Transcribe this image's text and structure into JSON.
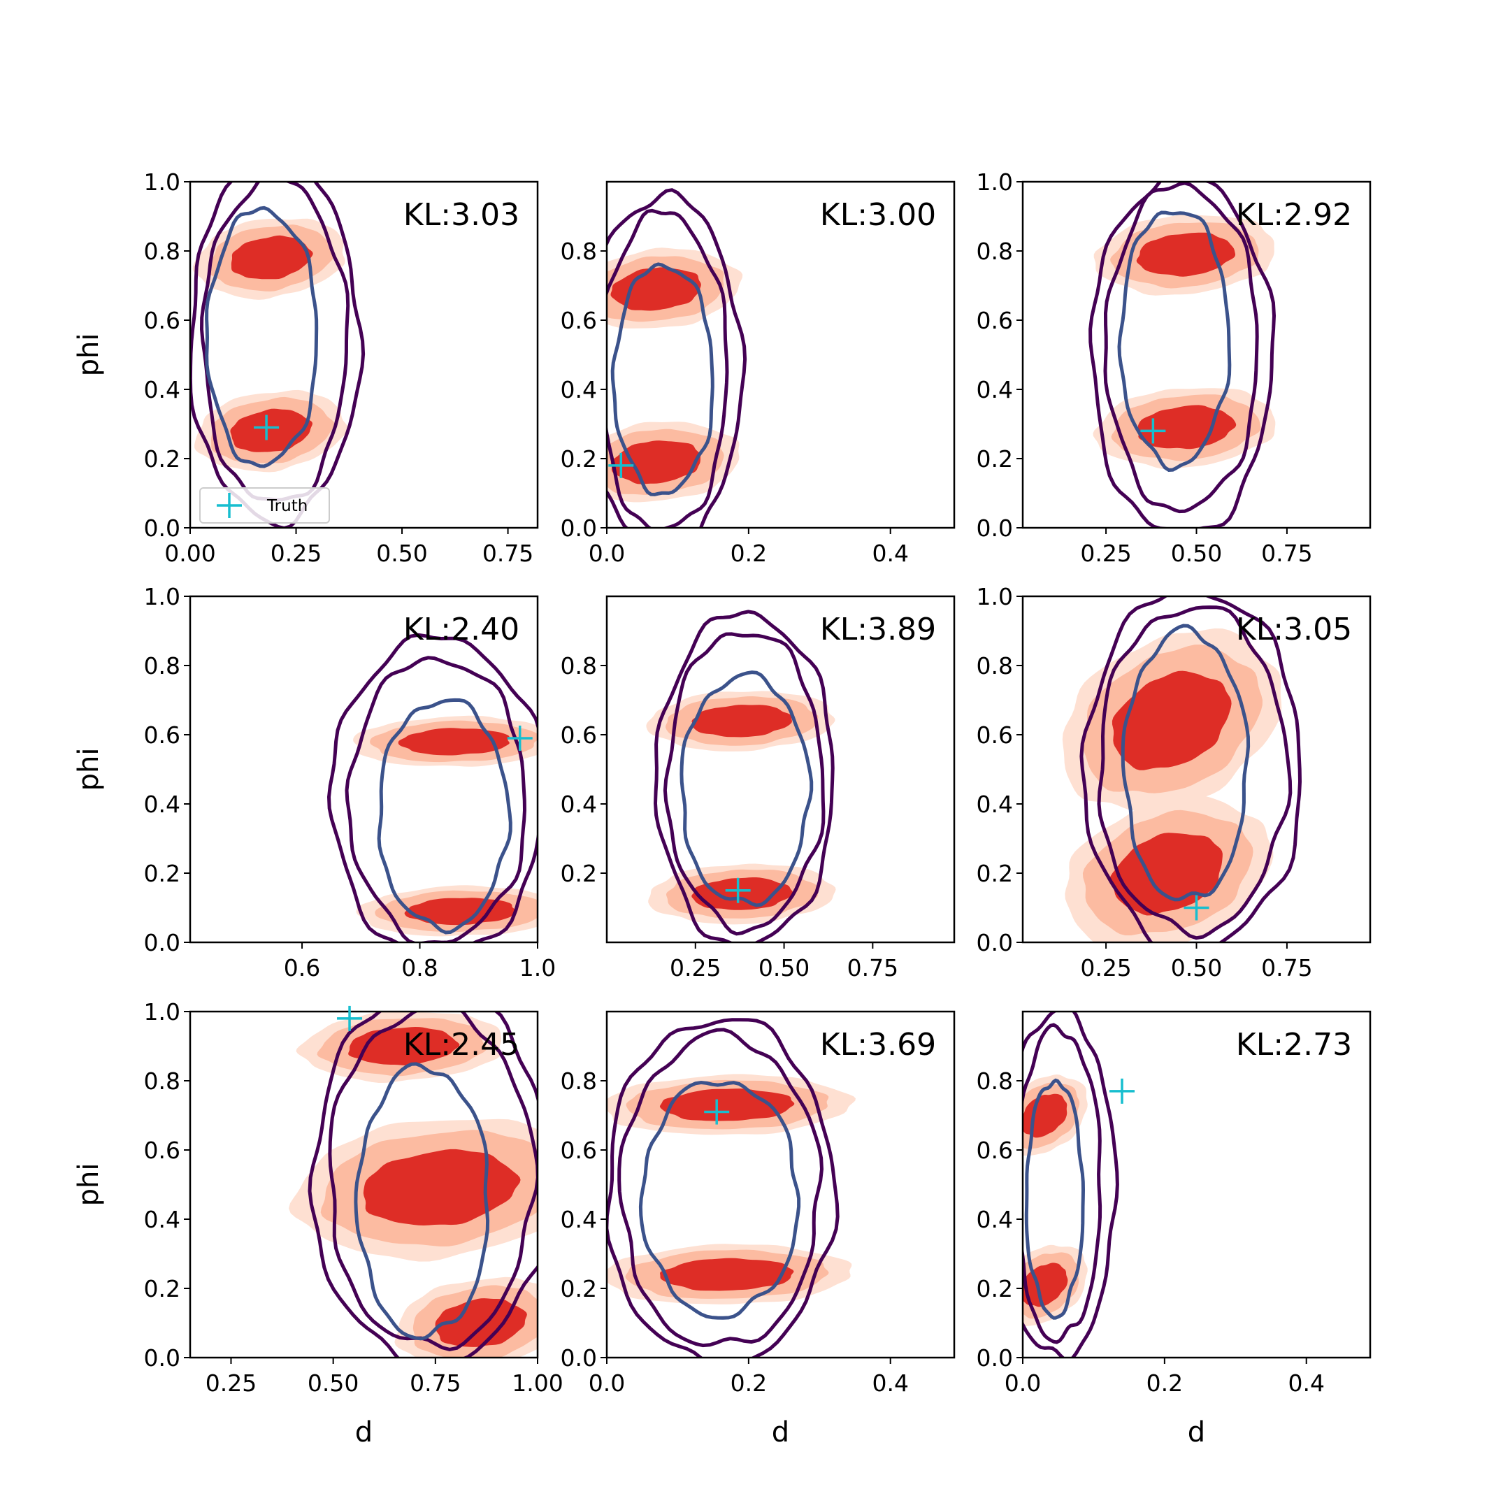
{
  "figure": {
    "truth_color": "#17becf",
    "fill_colors": [
      "#fee0d2",
      "#fcbba1",
      "#de2d26"
    ],
    "contour_colors": [
      "#440154",
      "#3b528b"
    ]
  },
  "chart_data": [
    {
      "type": "contour",
      "kl_text": "KL:3.03",
      "xlabel": "",
      "ylabel": "phi",
      "xlim": [
        0.0,
        0.82
      ],
      "ylim": [
        0.0,
        1.0
      ],
      "xticks": [
        0.0,
        0.25,
        0.5,
        0.75
      ],
      "xtick_labels": [
        "0.00",
        "0.25",
        "0.50",
        "0.75"
      ],
      "yticks": [
        0.0,
        0.2,
        0.4,
        0.6,
        0.8,
        1.0
      ],
      "ytick_labels": [
        "0.0",
        "0.2",
        "0.4",
        "0.6",
        "0.8",
        "1.0"
      ],
      "truth": [
        0.18,
        0.29
      ],
      "legend": {
        "label": "Truth",
        "location": "lower left"
      },
      "blobs": [
        {
          "cx": 0.19,
          "cy": 0.78,
          "rx": 0.12,
          "ry": 0.08
        },
        {
          "cx": 0.19,
          "cy": 0.28,
          "rx": 0.12,
          "ry": 0.08
        }
      ],
      "contours": [
        {
          "cx": 0.2,
          "cy": 0.54,
          "rx": 0.2,
          "ry": 0.52
        },
        {
          "cx": 0.2,
          "cy": 0.54,
          "rx": 0.17,
          "ry": 0.47
        },
        {
          "cx": 0.17,
          "cy": 0.55,
          "rx": 0.13,
          "ry": 0.37
        }
      ]
    },
    {
      "type": "contour",
      "kl_text": "KL:3.00",
      "xlabel": "",
      "ylabel": "",
      "xlim": [
        0.0,
        0.49
      ],
      "ylim": [
        0.0,
        1.0
      ],
      "xticks": [
        0.0,
        0.2,
        0.4
      ],
      "xtick_labels": [
        "0.0",
        "0.2",
        "0.4"
      ],
      "yticks": [
        0.0,
        0.2,
        0.4,
        0.6,
        0.8
      ],
      "ytick_labels": [
        "0.0",
        "0.2",
        "0.4",
        "0.6",
        "0.8"
      ],
      "truth": [
        0.02,
        0.18
      ],
      "blobs": [
        {
          "cx": 0.07,
          "cy": 0.69,
          "rx": 0.08,
          "ry": 0.08
        },
        {
          "cx": 0.07,
          "cy": 0.19,
          "rx": 0.08,
          "ry": 0.08
        }
      ],
      "contours": [
        {
          "cx": 0.08,
          "cy": 0.45,
          "rx": 0.11,
          "ry": 0.51
        },
        {
          "cx": 0.08,
          "cy": 0.45,
          "rx": 0.09,
          "ry": 0.46
        },
        {
          "cx": 0.08,
          "cy": 0.43,
          "rx": 0.07,
          "ry": 0.33
        }
      ]
    },
    {
      "type": "contour",
      "kl_text": "KL:2.92",
      "xlabel": "",
      "ylabel": "",
      "xlim": [
        0.02,
        0.98
      ],
      "ylim": [
        0.0,
        1.0
      ],
      "xticks": [
        0.25,
        0.5,
        0.75
      ],
      "xtick_labels": [
        "0.25",
        "0.50",
        "0.75"
      ],
      "yticks": [
        0.0,
        0.2,
        0.4,
        0.6,
        0.8,
        1.0
      ],
      "ytick_labels": [
        "0.0",
        "0.2",
        "0.4",
        "0.6",
        "0.8",
        "1.0"
      ],
      "truth": [
        0.38,
        0.28
      ],
      "blobs": [
        {
          "cx": 0.47,
          "cy": 0.79,
          "rx": 0.17,
          "ry": 0.08
        },
        {
          "cx": 0.47,
          "cy": 0.29,
          "rx": 0.17,
          "ry": 0.08
        }
      ],
      "contours": [
        {
          "cx": 0.46,
          "cy": 0.5,
          "rx": 0.25,
          "ry": 0.52
        },
        {
          "cx": 0.46,
          "cy": 0.52,
          "rx": 0.21,
          "ry": 0.47
        },
        {
          "cx": 0.44,
          "cy": 0.55,
          "rx": 0.15,
          "ry": 0.37
        }
      ]
    },
    {
      "type": "contour",
      "kl_text": "KL:2.40",
      "xlabel": "",
      "ylabel": "phi",
      "xlim": [
        0.41,
        1.0
      ],
      "ylim": [
        0.0,
        1.0
      ],
      "xticks": [
        0.6,
        0.8,
        1.0
      ],
      "xtick_labels": [
        "0.6",
        "0.8",
        "1.0"
      ],
      "yticks": [
        0.0,
        0.2,
        0.4,
        0.6,
        0.8,
        1.0
      ],
      "ytick_labels": [
        "0.0",
        "0.2",
        "0.4",
        "0.6",
        "0.8",
        "1.0"
      ],
      "truth": [
        0.97,
        0.59
      ],
      "blobs": [
        {
          "cx": 0.86,
          "cy": 0.58,
          "rx": 0.12,
          "ry": 0.05
        },
        {
          "cx": 0.87,
          "cy": 0.09,
          "rx": 0.12,
          "ry": 0.05
        }
      ],
      "contours": [
        {
          "cx": 0.83,
          "cy": 0.42,
          "rx": 0.18,
          "ry": 0.46
        },
        {
          "cx": 0.83,
          "cy": 0.41,
          "rx": 0.15,
          "ry": 0.41
        },
        {
          "cx": 0.84,
          "cy": 0.37,
          "rx": 0.11,
          "ry": 0.33
        }
      ]
    },
    {
      "type": "contour",
      "kl_text": "KL:3.89",
      "xlabel": "",
      "ylabel": "",
      "xlim": [
        0.0,
        0.98
      ],
      "ylim": [
        0.0,
        1.0
      ],
      "xticks": [
        0.25,
        0.5,
        0.75
      ],
      "xtick_labels": [
        "0.25",
        "0.50",
        "0.75"
      ],
      "yticks": [
        0.2,
        0.4,
        0.6,
        0.8
      ],
      "ytick_labels": [
        "0.2",
        "0.4",
        "0.6",
        "0.8"
      ],
      "truth": [
        0.37,
        0.15
      ],
      "blobs": [
        {
          "cx": 0.38,
          "cy": 0.64,
          "rx": 0.18,
          "ry": 0.06
        },
        {
          "cx": 0.38,
          "cy": 0.14,
          "rx": 0.18,
          "ry": 0.06
        }
      ],
      "contours": [
        {
          "cx": 0.39,
          "cy": 0.47,
          "rx": 0.25,
          "ry": 0.48
        },
        {
          "cx": 0.39,
          "cy": 0.47,
          "rx": 0.22,
          "ry": 0.43
        },
        {
          "cx": 0.39,
          "cy": 0.44,
          "rx": 0.18,
          "ry": 0.33
        }
      ]
    },
    {
      "type": "contour",
      "kl_text": "KL:3.05",
      "xlabel": "",
      "ylabel": "",
      "xlim": [
        0.02,
        0.98
      ],
      "ylim": [
        0.0,
        1.0
      ],
      "xticks": [
        0.25,
        0.5,
        0.75
      ],
      "xtick_labels": [
        "0.25",
        "0.50",
        "0.75"
      ],
      "yticks": [
        0.0,
        0.2,
        0.4,
        0.6,
        0.8,
        1.0
      ],
      "ytick_labels": [
        "0.0",
        "0.2",
        "0.4",
        "0.6",
        "0.8",
        "1.0"
      ],
      "truth": [
        0.5,
        0.1
      ],
      "blobs": [
        {
          "cx": 0.43,
          "cy": 0.64,
          "rx": 0.2,
          "ry": 0.18
        },
        {
          "cx": 0.42,
          "cy": 0.2,
          "rx": 0.19,
          "ry": 0.15
        }
      ],
      "contours": [
        {
          "cx": 0.49,
          "cy": 0.5,
          "rx": 0.3,
          "ry": 0.52
        },
        {
          "cx": 0.49,
          "cy": 0.5,
          "rx": 0.26,
          "ry": 0.47
        },
        {
          "cx": 0.47,
          "cy": 0.51,
          "rx": 0.17,
          "ry": 0.39
        }
      ]
    },
    {
      "type": "contour",
      "kl_text": "KL:2.45",
      "xlabel": "d",
      "ylabel": "phi",
      "xlim": [
        0.15,
        1.0
      ],
      "ylim": [
        0.0,
        1.0
      ],
      "xticks": [
        0.25,
        0.5,
        0.75,
        1.0
      ],
      "xtick_labels": [
        "0.25",
        "0.50",
        "0.75",
        "1.00"
      ],
      "yticks": [
        0.0,
        0.2,
        0.4,
        0.6,
        0.8,
        1.0
      ],
      "ytick_labels": [
        "0.0",
        "0.2",
        "0.4",
        "0.6",
        "0.8",
        "1.0"
      ],
      "truth": [
        0.54,
        0.98
      ],
      "blobs": [
        {
          "cx": 0.67,
          "cy": 0.9,
          "rx": 0.17,
          "ry": 0.07
        },
        {
          "cx": 0.76,
          "cy": 0.49,
          "rx": 0.24,
          "ry": 0.14
        },
        {
          "cx": 0.86,
          "cy": 0.1,
          "rx": 0.14,
          "ry": 0.09
        }
      ],
      "contours": [
        {
          "cx": 0.74,
          "cy": 0.52,
          "rx": 0.29,
          "ry": 0.54
        },
        {
          "cx": 0.74,
          "cy": 0.52,
          "rx": 0.25,
          "ry": 0.49
        },
        {
          "cx": 0.72,
          "cy": 0.45,
          "rx": 0.16,
          "ry": 0.39
        }
      ]
    },
    {
      "type": "contour",
      "kl_text": "KL:3.69",
      "xlabel": "d",
      "ylabel": "",
      "xlim": [
        0.0,
        0.49
      ],
      "ylim": [
        0.0,
        1.0
      ],
      "xticks": [
        0.0,
        0.2,
        0.4
      ],
      "xtick_labels": [
        "0.0",
        "0.2",
        "0.4"
      ],
      "yticks": [
        0.0,
        0.2,
        0.4,
        0.6,
        0.8
      ],
      "ytick_labels": [
        "0.0",
        "0.2",
        "0.4",
        "0.6",
        "0.8"
      ],
      "truth": [
        0.155,
        0.71
      ],
      "blobs": [
        {
          "cx": 0.17,
          "cy": 0.73,
          "rx": 0.12,
          "ry": 0.06
        },
        {
          "cx": 0.17,
          "cy": 0.24,
          "rx": 0.12,
          "ry": 0.06
        }
      ],
      "contours": [
        {
          "cx": 0.16,
          "cy": 0.48,
          "rx": 0.16,
          "ry": 0.5
        },
        {
          "cx": 0.16,
          "cy": 0.48,
          "rx": 0.14,
          "ry": 0.45
        },
        {
          "cx": 0.16,
          "cy": 0.46,
          "rx": 0.11,
          "ry": 0.34
        }
      ]
    },
    {
      "type": "contour",
      "kl_text": "KL:2.73",
      "xlabel": "d",
      "ylabel": "",
      "xlim": [
        0.0,
        0.49
      ],
      "ylim": [
        0.0,
        1.0
      ],
      "xticks": [
        0.0,
        0.2,
        0.4
      ],
      "xtick_labels": [
        "0.0",
        "0.2",
        "0.4"
      ],
      "yticks": [
        0.0,
        0.2,
        0.4,
        0.6,
        0.8
      ],
      "ytick_labels": [
        "0.0",
        "0.2",
        "0.4",
        "0.6",
        "0.8"
      ],
      "truth": [
        0.14,
        0.77
      ],
      "blobs": [
        {
          "cx": 0.03,
          "cy": 0.7,
          "rx": 0.04,
          "ry": 0.08
        },
        {
          "cx": 0.03,
          "cy": 0.21,
          "rx": 0.04,
          "ry": 0.08
        }
      ],
      "contours": [
        {
          "cx": 0.05,
          "cy": 0.5,
          "rx": 0.08,
          "ry": 0.5
        },
        {
          "cx": 0.05,
          "cy": 0.5,
          "rx": 0.06,
          "ry": 0.45
        },
        {
          "cx": 0.045,
          "cy": 0.46,
          "rx": 0.04,
          "ry": 0.34
        }
      ]
    }
  ]
}
